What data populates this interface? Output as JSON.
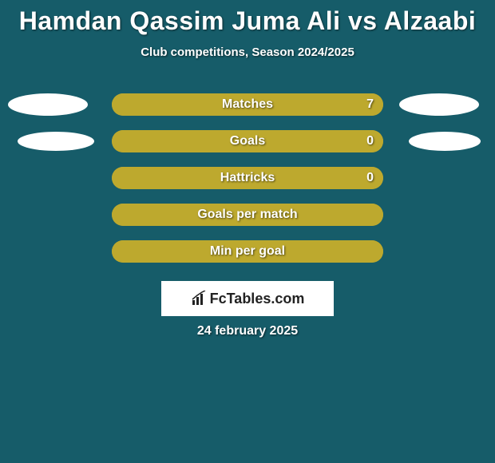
{
  "title": "Hamdan Qassim Juma Ali vs Alzaabi",
  "subtitle": "Club competitions, Season 2024/2025",
  "bar_color_bg": "#a39028",
  "bar_color_fill": "#bda92e",
  "background_color": "#165c69",
  "rows": [
    {
      "label": "Matches",
      "value": "7",
      "show_value": true,
      "fill_pct": 100,
      "left_ellipse": "large",
      "right_ellipse": "large"
    },
    {
      "label": "Goals",
      "value": "0",
      "show_value": true,
      "fill_pct": 100,
      "left_ellipse": "small",
      "right_ellipse": "small"
    },
    {
      "label": "Hattricks",
      "value": "0",
      "show_value": true,
      "fill_pct": 100,
      "left_ellipse": null,
      "right_ellipse": null
    },
    {
      "label": "Goals per match",
      "value": "",
      "show_value": false,
      "fill_pct": 100,
      "left_ellipse": null,
      "right_ellipse": null
    },
    {
      "label": "Min per goal",
      "value": "",
      "show_value": false,
      "fill_pct": 100,
      "left_ellipse": null,
      "right_ellipse": null
    }
  ],
  "logo_text": "FcTables.com",
  "date": "24 february 2025"
}
